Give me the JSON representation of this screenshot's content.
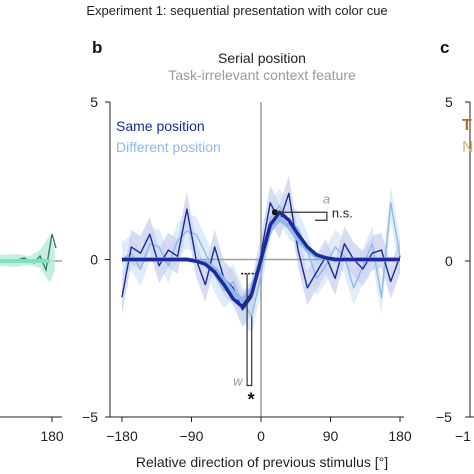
{
  "header": {
    "experiment_title": "Experiment 1: sequential presentation with color cue"
  },
  "panels": {
    "b": {
      "letter": "b",
      "title": "Serial position",
      "subtitle": "Task-irrelevant context feature"
    },
    "c": {
      "letter": "c",
      "partial_legend_1": "T",
      "partial_legend_2": "N"
    }
  },
  "annotations": {
    "a_label": "a",
    "ns_label": "n.s.",
    "w_label": "w",
    "star": "*"
  },
  "left_panel": {
    "x_tick_label": "180"
  },
  "colors": {
    "same_position": "#1a2a9c",
    "different_position": "#8fb8e8",
    "band_same": "#c9d0ef",
    "band_diff": "#d6e6f7",
    "zero_line": "#9aa39a",
    "subtitle": "#9a9a9a",
    "left_panel_series": "#2c7a5a",
    "left_panel_band": "#b8ead6",
    "panel_c_legend": "#b06a2a"
  },
  "chart_data": {
    "type": "line",
    "title": "Serial position",
    "subtitle": "Task-irrelevant context feature",
    "xlabel": "Relative direction of previous stimulus [°]",
    "ylabel": "",
    "xlim": [
      -180,
      180
    ],
    "ylim": [
      -5,
      5
    ],
    "x_ticks": [
      -180,
      -90,
      0,
      90,
      180
    ],
    "x_tick_labels": [
      "−180",
      "−90",
      "0",
      "90",
      "180"
    ],
    "y_ticks": [
      5,
      0,
      -5
    ],
    "y_tick_labels": [
      "5",
      "0",
      "−5"
    ],
    "legend": "top-left",
    "x": [
      -180,
      -168,
      -156,
      -144,
      -132,
      -120,
      -108,
      -96,
      -84,
      -72,
      -60,
      -48,
      -36,
      -24,
      -12,
      0,
      12,
      24,
      36,
      48,
      60,
      72,
      84,
      96,
      108,
      120,
      132,
      144,
      156,
      168,
      180
    ],
    "series": [
      {
        "name": "Same position",
        "values": [
          -1.2,
          0.4,
          0.2,
          0.8,
          -0.2,
          0.3,
          0.1,
          1.6,
          0.0,
          -0.8,
          0.4,
          -0.6,
          -0.9,
          -1.6,
          -1.2,
          0.2,
          1.8,
          1.2,
          2.1,
          0.3,
          -0.9,
          -0.4,
          0.1,
          -0.6,
          0.5,
          0.0,
          -0.3,
          0.2,
          0.3,
          -0.7,
          0.1
        ],
        "fit": [
          0,
          0,
          0,
          0,
          0,
          0,
          0,
          0,
          -0.05,
          -0.15,
          -0.4,
          -0.8,
          -1.25,
          -1.5,
          -1.1,
          0.0,
          1.1,
          1.5,
          1.25,
          0.8,
          0.4,
          0.15,
          0.05,
          0,
          0,
          0,
          0,
          0,
          0,
          0,
          0
        ]
      },
      {
        "name": "Different position",
        "values": [
          0.0,
          0.2,
          -0.3,
          0.5,
          0.4,
          -0.2,
          0.6,
          0.9,
          0.8,
          0.2,
          -0.5,
          -1.0,
          -0.7,
          -1.4,
          -1.8,
          -0.5,
          1.3,
          1.7,
          1.2,
          1.0,
          0.3,
          -0.6,
          -0.2,
          0.4,
          0.1,
          -0.9,
          -0.2,
          0.5,
          -1.2,
          1.8,
          0.1
        ],
        "fit": [
          0,
          0,
          0,
          0,
          0,
          0,
          0,
          0,
          -0.05,
          -0.1,
          -0.3,
          -0.65,
          -1.05,
          -1.3,
          -0.95,
          0.0,
          0.95,
          1.3,
          1.05,
          0.65,
          0.3,
          0.1,
          0.05,
          0,
          0,
          0,
          0,
          0,
          0,
          0,
          0
        ]
      }
    ]
  }
}
